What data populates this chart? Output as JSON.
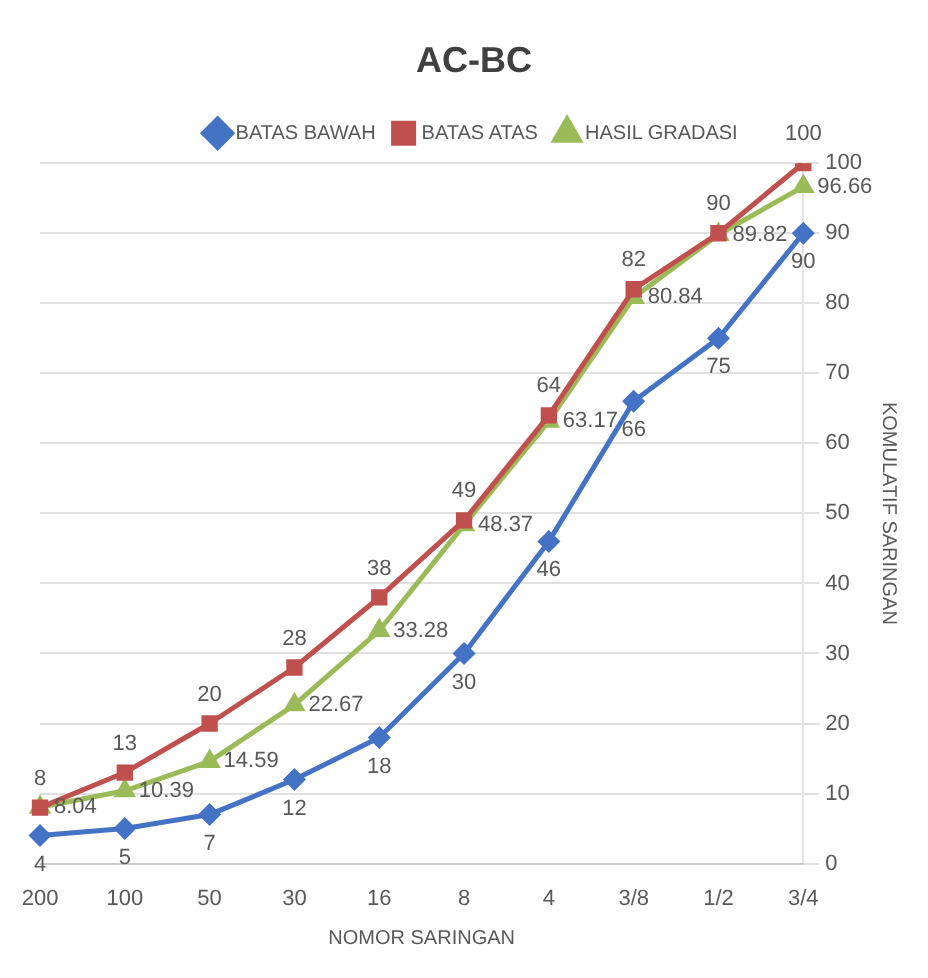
{
  "chart_data": {
    "type": "line",
    "title": "AC-BC",
    "xlabel": "NOMOR SARINGAN",
    "ylabel": "KOMULATIF SARINGAN",
    "categories": [
      "200",
      "100",
      "50",
      "30",
      "16",
      "8",
      "4",
      "3/8",
      "1/2",
      "3/4"
    ],
    "series": [
      {
        "name": "BATAS BAWAH",
        "color": "#4472c4",
        "marker": "diamond",
        "values": [
          4,
          5,
          7,
          12,
          18,
          30,
          46,
          66,
          75,
          90
        ]
      },
      {
        "name": "BATAS ATAS",
        "color": "#c0504d",
        "marker": "square",
        "values": [
          8,
          13,
          20,
          28,
          38,
          49,
          64,
          82,
          90,
          100
        ]
      },
      {
        "name": "HASIL GRADASI",
        "color": "#9bbb59",
        "marker": "triangle",
        "values": [
          8.04,
          10.39,
          14.59,
          22.67,
          33.28,
          48.37,
          63.17,
          80.84,
          89.82,
          96.66
        ]
      }
    ],
    "ylim": [
      0,
      100
    ],
    "yticks": [
      0,
      10,
      20,
      30,
      40,
      50,
      60,
      70,
      80,
      90,
      100
    ],
    "grid": "y",
    "legend": "top",
    "data_labels": true,
    "line_style": "solid"
  }
}
